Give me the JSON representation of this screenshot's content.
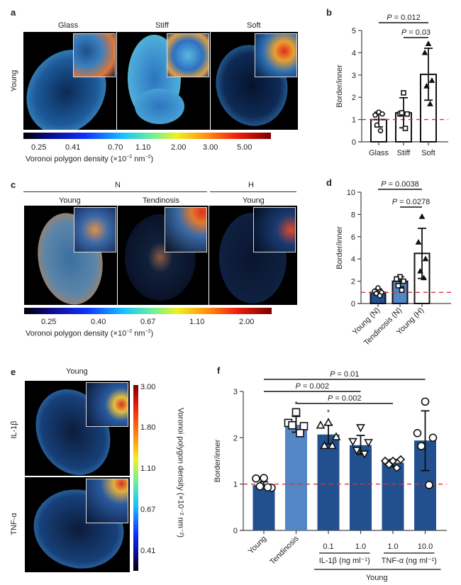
{
  "panel_labels": {
    "a": "a",
    "b": "b",
    "c": "c",
    "d": "d",
    "e": "e",
    "f": "f"
  },
  "panel_a": {
    "row_label": "Young",
    "columns": [
      "Glass",
      "Stiff",
      "Soft"
    ],
    "colorbar_ticks": [
      "0.25",
      "0.41",
      "0.70",
      "1.10",
      "2.00",
      "3.00",
      "5.00"
    ],
    "colorbar_label": "Voronoi polygon density (×10",
    "colorbar_label_exp1": "−2",
    "colorbar_label_mid": " nm",
    "colorbar_label_exp2": "−2",
    "colorbar_label_end": ")"
  },
  "panel_c": {
    "group_labels": [
      "N",
      "H"
    ],
    "columns": [
      "Young",
      "Tendinosis",
      "Young"
    ],
    "colorbar_ticks": [
      "0.25",
      "0.40",
      "0.67",
      "1.10",
      "2.00"
    ],
    "colorbar_label": "Voronoi polygon density (×10",
    "colorbar_label_exp1": "−2",
    "colorbar_label_mid": " nm",
    "colorbar_label_exp2": "−2",
    "colorbar_label_end": ")"
  },
  "panel_e": {
    "column_label": "Young",
    "row_labels": [
      "IL-1β",
      "TNF-α"
    ],
    "colorbar_ticks": [
      "3.00",
      "1.80",
      "1.10",
      "0.67",
      "0.41"
    ],
    "colorbar_label": "Voronoi polygon density (×10⁻² nm⁻²)"
  },
  "colors": {
    "dark_bar": "#22508e",
    "light_bar": "#5286c4",
    "reference_line": "#d9313b",
    "image_bg": "#000000"
  },
  "chart_data": [
    {
      "id": "b",
      "type": "bar",
      "title": "",
      "xlabel": "",
      "ylabel": "Border/inner",
      "ylim": [
        0,
        5
      ],
      "yticks": [
        "0",
        "1",
        "2",
        "3",
        "4",
        "5"
      ],
      "categories": [
        "Glass",
        "Stiff",
        "Soft"
      ],
      "values": [
        1.0,
        1.3,
        3.03
      ],
      "error": [
        [
          0.67,
          1.33
        ],
        [
          0.63,
          1.98
        ],
        [
          1.87,
          4.2
        ]
      ],
      "points": [
        [
          1.33,
          1.2,
          1.25,
          0.75,
          0.5
        ],
        [
          2.2,
          1.25,
          1.25,
          1.3,
          0.6
        ],
        [
          4.4,
          4.0,
          2.75,
          2.5,
          1.7
        ]
      ],
      "marker": [
        "circle",
        "square",
        "triangle"
      ],
      "fill": [
        "white",
        "white",
        "white"
      ],
      "reference_line": 1,
      "significance": [
        {
          "from": "Glass",
          "to": "Soft",
          "label_p": "P",
          "label_val": " = 0.012"
        },
        {
          "from": "Stiff",
          "to": "Soft",
          "label_p": "P",
          "label_val": " = 0.03"
        }
      ]
    },
    {
      "id": "d",
      "type": "bar",
      "ylabel": "Border/inner",
      "ylim": [
        0,
        10
      ],
      "yticks": [
        "0",
        "2",
        "4",
        "6",
        "8",
        "10"
      ],
      "categories": [
        "Young (N)",
        "Tendinosis (N)",
        "Young (H)"
      ],
      "values": [
        1.0,
        2.0,
        4.5
      ],
      "error": [
        [
          0.75,
          1.3
        ],
        [
          1.5,
          2.4
        ],
        [
          2.25,
          6.75
        ]
      ],
      "points": [
        [
          1.4,
          1.1,
          1.0,
          0.9,
          0.7
        ],
        [
          2.4,
          2.2,
          2.0,
          1.6,
          1.2
        ],
        [
          7.8,
          5.5,
          4.0,
          2.9,
          2.3
        ]
      ],
      "marker": [
        "circle",
        "square",
        "triangle"
      ],
      "fill": [
        "dark",
        "light",
        "white"
      ],
      "reference_line": 1,
      "significance": [
        {
          "from": "Young (N)",
          "to": "Young (H)",
          "label_p": "P",
          "label_val": " = 0.0038"
        },
        {
          "from": "Tendinosis (N)",
          "to": "Young (H)",
          "label_p": "P",
          "label_val": " = 0.0278"
        }
      ]
    },
    {
      "id": "f",
      "type": "bar",
      "ylabel": "Border/inner",
      "ylim": [
        0,
        3
      ],
      "yticks": [
        "0",
        "1",
        "2",
        "3"
      ],
      "categories": [
        "Young",
        "Tendinosis",
        "0.1",
        "1.0",
        "1.0",
        "10.0"
      ],
      "group_labels": [
        {
          "label": "IL-1β (ng ml⁻¹)",
          "from": 2,
          "to": 3
        },
        {
          "label": "TNF-α (ng ml⁻¹)",
          "from": 4,
          "to": 5
        }
      ],
      "outer_group_label": "Young",
      "values": [
        0.98,
        2.28,
        2.07,
        1.84,
        1.46,
        1.94
      ],
      "error": [
        [
          0.93,
          1.05
        ],
        [
          2.12,
          2.46
        ],
        [
          1.87,
          2.28
        ],
        [
          1.64,
          2.05
        ],
        [
          1.38,
          1.53
        ],
        [
          1.29,
          2.58
        ]
      ],
      "points": [
        [
          1.13,
          1.12,
          0.92,
          0.95,
          0.93
        ],
        [
          2.55,
          2.32,
          2.25,
          2.27,
          2.1
        ],
        [
          2.33,
          2.27,
          2.02,
          1.83,
          1.83
        ],
        [
          2.22,
          1.92,
          1.9,
          1.73,
          1.65
        ],
        [
          1.5,
          1.5,
          1.53,
          1.42,
          1.35
        ],
        [
          2.78,
          2.1,
          2.0,
          1.82,
          0.98
        ]
      ],
      "marker": [
        "circle",
        "square",
        "triangle",
        "triangle-down",
        "diamond",
        "circle"
      ],
      "fill": [
        "dark",
        "light",
        "dark",
        "dark",
        "dark",
        "dark"
      ],
      "asterisks": [
        "",
        "*",
        "*",
        "",
        "",
        ""
      ],
      "reference_line": 1,
      "significance": [
        {
          "from": 0,
          "to": 5,
          "label_p": "P",
          "label_val": " = 0.01"
        },
        {
          "from": 0,
          "to": 3,
          "label_p": "P",
          "label_val": " = 0.002"
        },
        {
          "from": 1,
          "to": 4,
          "label_p": "P",
          "label_val": " = 0.002"
        }
      ]
    }
  ]
}
